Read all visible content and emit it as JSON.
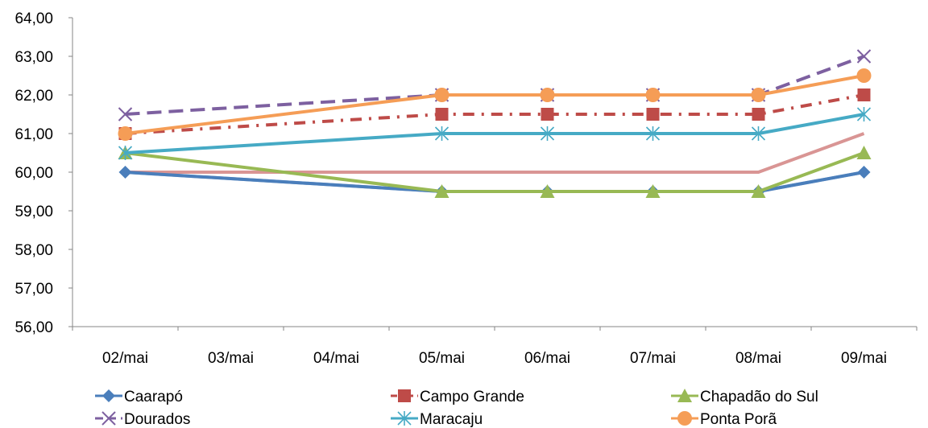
{
  "chart_data": {
    "type": "line",
    "title": "",
    "xlabel": "",
    "ylabel": "",
    "categories": [
      "02/mai",
      "03/mai",
      "04/mai",
      "05/mai",
      "06/mai",
      "07/mai",
      "08/mai",
      "09/mai"
    ],
    "ylim": [
      56,
      64
    ],
    "yticks": [
      "56,00",
      "57,00",
      "58,00",
      "59,00",
      "60,00",
      "61,00",
      "62,00",
      "63,00",
      "64,00"
    ],
    "grid": false,
    "legend_position": "bottom",
    "series": [
      {
        "name": "Caarapó",
        "color": "#4a7ebb",
        "dash": "solid",
        "marker": "diamond",
        "points": [
          [
            0,
            60.0
          ],
          [
            3,
            59.5
          ],
          [
            4,
            59.5
          ],
          [
            5,
            59.5
          ],
          [
            6,
            59.5
          ],
          [
            7,
            60.0
          ]
        ]
      },
      {
        "name": "Campo Grande",
        "color": "#be4b48",
        "dash": "dashdot",
        "marker": "square",
        "points": [
          [
            0,
            61.0
          ],
          [
            3,
            61.5
          ],
          [
            4,
            61.5
          ],
          [
            5,
            61.5
          ],
          [
            6,
            61.5
          ],
          [
            7,
            62.0
          ]
        ]
      },
      {
        "name": "Chapadão do Sul",
        "color": "#98b954",
        "dash": "solid",
        "marker": "triangle",
        "points": [
          [
            0,
            60.5
          ],
          [
            3,
            59.5
          ],
          [
            4,
            59.5
          ],
          [
            5,
            59.5
          ],
          [
            6,
            59.5
          ],
          [
            7,
            60.5
          ]
        ]
      },
      {
        "name": "Dourados",
        "color": "#7d60a0",
        "dash": "dash",
        "marker": "x",
        "points": [
          [
            0,
            61.5
          ],
          [
            3,
            62.0
          ],
          [
            4,
            62.0
          ],
          [
            5,
            62.0
          ],
          [
            6,
            62.0
          ],
          [
            7,
            63.0
          ]
        ]
      },
      {
        "name": "Maracaju",
        "color": "#46aac5",
        "dash": "solid",
        "marker": "star",
        "points": [
          [
            0,
            60.5
          ],
          [
            3,
            61.0
          ],
          [
            4,
            61.0
          ],
          [
            5,
            61.0
          ],
          [
            6,
            61.0
          ],
          [
            7,
            61.5
          ]
        ]
      },
      {
        "name": "Ponta Porã",
        "color": "#f59d56",
        "dash": "solid",
        "marker": "circle",
        "points": [
          [
            0,
            61.0
          ],
          [
            3,
            62.0
          ],
          [
            4,
            62.0
          ],
          [
            5,
            62.0
          ],
          [
            6,
            62.0
          ],
          [
            7,
            62.5
          ]
        ]
      },
      {
        "name": "",
        "color": "#d99594",
        "dash": "solid",
        "marker": "none",
        "points": [
          [
            0,
            60.0
          ],
          [
            3,
            60.0
          ],
          [
            4,
            60.0
          ],
          [
            5,
            60.0
          ],
          [
            6,
            60.0
          ],
          [
            7,
            61.0
          ]
        ]
      },
      {
        "name": "",
        "color": "#95b3d7",
        "dash": "solid",
        "marker": "none",
        "points": [
          [
            0,
            60.0
          ],
          [
            3,
            59.5
          ],
          [
            4,
            59.5
          ],
          [
            5,
            59.5
          ],
          [
            6,
            59.5
          ],
          [
            7,
            60.0
          ]
        ]
      }
    ]
  }
}
